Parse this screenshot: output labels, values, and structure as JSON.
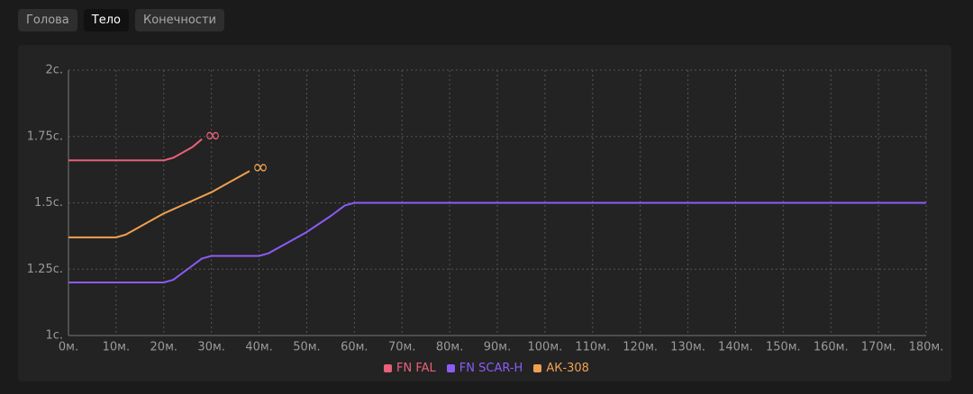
{
  "tabs": [
    "Голова",
    "Тело",
    "Конечности"
  ],
  "active_tab": 1,
  "chart_data": {
    "type": "line",
    "grid": true,
    "xlim": [
      0,
      180
    ],
    "xticks": [
      {
        "value": 0,
        "label": "0м."
      },
      {
        "value": 10,
        "label": "10м."
      },
      {
        "value": 20,
        "label": "20м."
      },
      {
        "value": 30,
        "label": "30м."
      },
      {
        "value": 40,
        "label": "40м."
      },
      {
        "value": 50,
        "label": "50м."
      },
      {
        "value": 60,
        "label": "60м."
      },
      {
        "value": 70,
        "label": "70м."
      },
      {
        "value": 80,
        "label": "80м."
      },
      {
        "value": 90,
        "label": "90м."
      },
      {
        "value": 100,
        "label": "100м."
      },
      {
        "value": 110,
        "label": "110м."
      },
      {
        "value": 120,
        "label": "120м."
      },
      {
        "value": 130,
        "label": "130м."
      },
      {
        "value": 140,
        "label": "140м."
      },
      {
        "value": 150,
        "label": "150м."
      },
      {
        "value": 160,
        "label": "160м."
      },
      {
        "value": 170,
        "label": "170м."
      },
      {
        "value": 180,
        "label": "180м."
      }
    ],
    "ylim": [
      1,
      2
    ],
    "yticks": [
      {
        "value": 1,
        "label": "1с."
      },
      {
        "value": 1.25,
        "label": "1.25с."
      },
      {
        "value": 1.5,
        "label": "1.5с."
      },
      {
        "value": 1.75,
        "label": "1.75с."
      },
      {
        "value": 2,
        "label": "2с."
      }
    ],
    "series": [
      {
        "name": "FN FAL",
        "color": "#e8607a",
        "end_label": "∞",
        "x": [
          0,
          10,
          20,
          22,
          24,
          26,
          28
        ],
        "values": [
          1.66,
          1.66,
          1.66,
          1.67,
          1.69,
          1.71,
          1.74
        ]
      },
      {
        "name": "FN SCAR-H",
        "color": "#8b5cf6",
        "x": [
          0,
          20,
          22,
          25,
          28,
          30,
          40,
          42,
          45,
          50,
          55,
          58,
          60,
          180
        ],
        "values": [
          1.2,
          1.2,
          1.21,
          1.25,
          1.29,
          1.3,
          1.3,
          1.31,
          1.34,
          1.39,
          1.45,
          1.49,
          1.5,
          1.5
        ]
      },
      {
        "name": "АК-308",
        "color": "#f0a050",
        "end_label": "∞",
        "x": [
          0,
          10,
          12,
          15,
          20,
          25,
          30,
          35,
          38
        ],
        "values": [
          1.37,
          1.37,
          1.38,
          1.41,
          1.46,
          1.5,
          1.54,
          1.59,
          1.62
        ]
      }
    ]
  }
}
